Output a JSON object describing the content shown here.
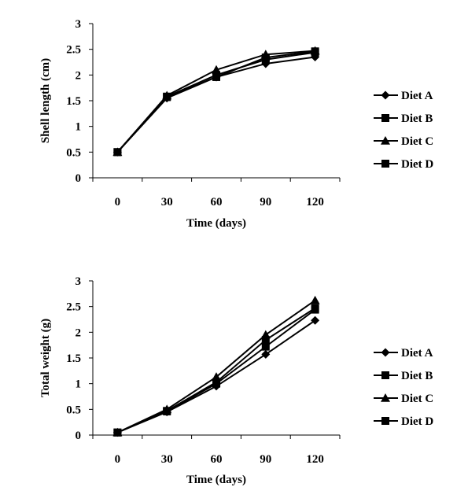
{
  "chart_data": [
    {
      "type": "line",
      "x": [
        0,
        30,
        60,
        90,
        120
      ],
      "xlabel": "Time (days)",
      "ylabel": "Shell length (cm)",
      "ylim": [
        0,
        3
      ],
      "yticks": [
        "0",
        "0.5",
        "1",
        "1.5",
        "2",
        "2.5",
        "3"
      ],
      "xticks": [
        "0",
        "30",
        "60",
        "90",
        "120"
      ],
      "grid": false,
      "legend": "right",
      "series": [
        {
          "name": "Diet A",
          "marker": "diamond",
          "values": [
            0.5,
            1.55,
            1.96,
            2.22,
            2.35
          ]
        },
        {
          "name": "Diet B",
          "marker": "square",
          "values": [
            0.5,
            1.58,
            2.0,
            2.3,
            2.44
          ]
        },
        {
          "name": "Diet C",
          "marker": "triangle",
          "values": [
            0.5,
            1.6,
            2.1,
            2.4,
            2.47
          ]
        },
        {
          "name": "Diet D",
          "marker": "square",
          "values": [
            0.5,
            1.57,
            1.96,
            2.34,
            2.46
          ]
        }
      ]
    },
    {
      "type": "line",
      "x": [
        0,
        30,
        60,
        90,
        120
      ],
      "xlabel": "Time (days)",
      "ylabel": "Total weight (g)",
      "ylim": [
        0,
        3
      ],
      "yticks": [
        "0",
        "0.5",
        "1",
        "1.5",
        "2",
        "2.5",
        "3"
      ],
      "xticks": [
        "0",
        "30",
        "60",
        "90",
        "120"
      ],
      "grid": false,
      "legend": "right",
      "series": [
        {
          "name": "Diet A",
          "marker": "diamond",
          "values": [
            0.05,
            0.45,
            0.95,
            1.57,
            2.23
          ]
        },
        {
          "name": "Diet B",
          "marker": "square",
          "values": [
            0.05,
            0.46,
            1.0,
            1.72,
            2.44
          ]
        },
        {
          "name": "Diet C",
          "marker": "triangle",
          "values": [
            0.05,
            0.5,
            1.13,
            1.95,
            2.62
          ]
        },
        {
          "name": "Diet D",
          "marker": "square",
          "values": [
            0.05,
            0.47,
            1.03,
            1.85,
            2.47
          ]
        }
      ]
    }
  ]
}
